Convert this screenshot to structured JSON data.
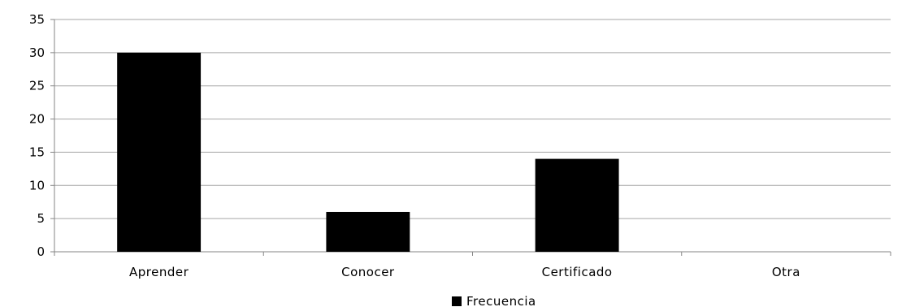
{
  "chart_data": {
    "type": "bar",
    "categories": [
      "Aprender",
      "Conocer",
      "Certificado",
      "Otra"
    ],
    "series": [
      {
        "name": "Frecuencia",
        "values": [
          30,
          6,
          14,
          0
        ],
        "color": "#000000"
      }
    ],
    "title": "",
    "xlabel": "",
    "ylabel": "",
    "ylim": [
      0,
      35
    ],
    "yticks": [
      "0",
      "5",
      "10",
      "15",
      "20",
      "25",
      "30",
      "35"
    ],
    "grid": true,
    "gridColor": "#a6a6a6",
    "legend": {
      "position": "bottom",
      "entries": [
        "Frecuencia"
      ]
    }
  }
}
